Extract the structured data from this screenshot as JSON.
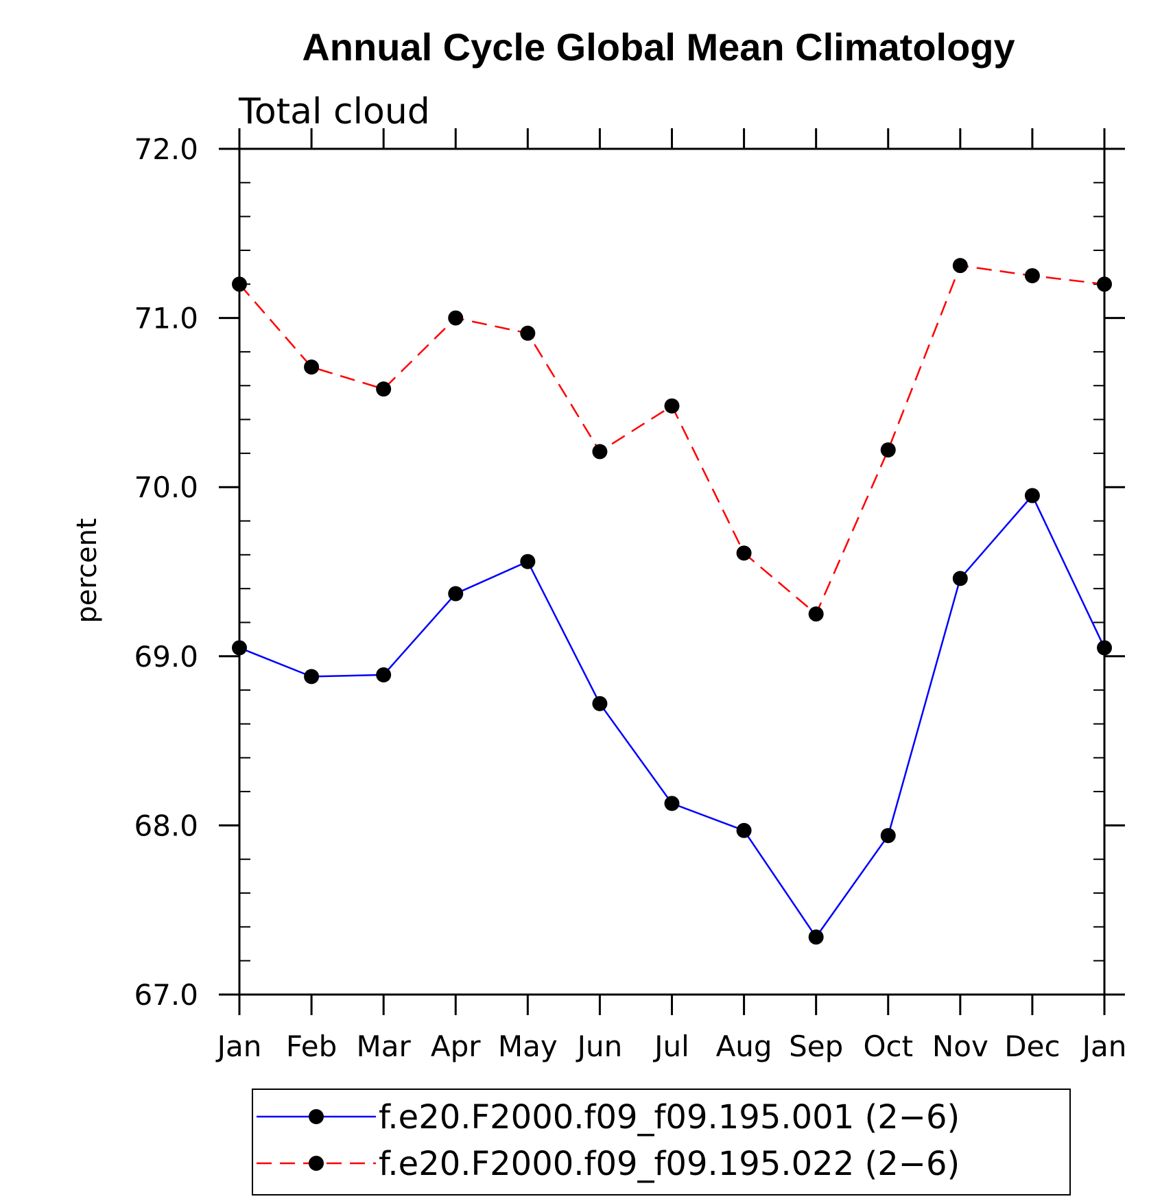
{
  "chart_data": {
    "type": "line",
    "title": "Annual Cycle Global Mean Climatology",
    "subtitle": "Total cloud",
    "ylabel": "percent",
    "xlabel": "",
    "categories": [
      "Jan",
      "Feb",
      "Mar",
      "Apr",
      "May",
      "Jun",
      "Jul",
      "Aug",
      "Sep",
      "Oct",
      "Nov",
      "Dec",
      "Jan"
    ],
    "ylim": [
      67.0,
      72.0
    ],
    "yticks": [
      "67.0",
      "68.0",
      "69.0",
      "70.0",
      "71.0",
      "72.0"
    ],
    "grid": false,
    "legend_position": "bottom",
    "series": [
      {
        "name": "f.e20.F2000.f09_f09.195.001 (2−6)",
        "color": "#0000ff",
        "line_style": "solid",
        "marker": "filled-circle",
        "values": [
          69.05,
          68.88,
          68.89,
          69.37,
          69.56,
          68.72,
          68.13,
          67.97,
          67.34,
          67.94,
          69.46,
          69.95,
          69.05
        ]
      },
      {
        "name": "f.e20.F2000.f09_f09.195.022 (2−6)",
        "color": "#ff0000",
        "line_style": "dashed",
        "marker": "filled-circle",
        "values": [
          71.2,
          70.71,
          70.58,
          71.0,
          70.91,
          70.21,
          70.48,
          69.61,
          69.25,
          70.22,
          71.31,
          71.25,
          71.2
        ]
      }
    ]
  }
}
